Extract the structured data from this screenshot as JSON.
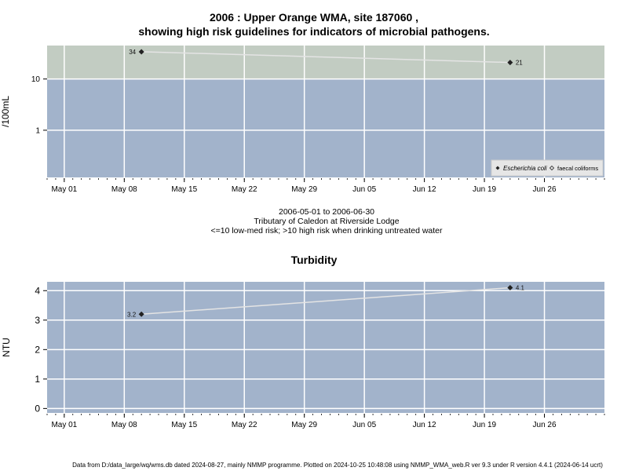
{
  "header": {
    "title_line1": "2006 : Upper Orange WMA, site 187060 ,",
    "title_line2": "showing high risk guidelines for indicators of microbial pathogens."
  },
  "subtitle": {
    "line1": "2006-05-01 to 2006-06-30",
    "line2": "Tributary of Caledon at Riverside Lodge",
    "line3": "<=10 low-med risk; >10 high risk when drinking untreated water"
  },
  "footer": {
    "text": "Data from D:/data_large/wq/wms.db dated 2024-08-27, mainly NMMP programme. Plotted on 2024-10-25 10:48:08 using NMMP_WMA_web.R ver 9.3 under R version 4.4.1 (2024-06-14 ucrt)"
  },
  "colors": {
    "plot_background": "#a2b3cb",
    "high_risk_band": "#c2ccc2",
    "gridline": "#ffffff",
    "series_line": "#e4e4e4",
    "point": "#222222"
  },
  "chart_data": [
    {
      "type": "line",
      "y_scale": "log",
      "title": "",
      "xlabel": "",
      "ylabel": "/100mL",
      "x_tick_labels": [
        "May 01",
        "May 08",
        "May 15",
        "May 22",
        "May 29",
        "Jun 05",
        "Jun 12",
        "Jun 19",
        "Jun 26"
      ],
      "y_ticks": [
        1,
        10
      ],
      "ylim": [
        0.12,
        45
      ],
      "xlim": [
        "2006-04-29",
        "2006-07-03"
      ],
      "high_risk_threshold": 10,
      "grid": true,
      "legend_position": "bottom-right",
      "legend": [
        "Escherichia coli",
        "faecal coliforms"
      ],
      "series": [
        {
          "name": "Escherichia coli",
          "marker": "diamond-filled",
          "points": [
            {
              "x": "2006-05-10",
              "y": 34,
              "label": "34"
            },
            {
              "x": "2006-06-22",
              "y": 21,
              "label": "21"
            }
          ]
        }
      ]
    },
    {
      "type": "line",
      "title": "Turbidity",
      "xlabel": "",
      "ylabel": "NTU",
      "x_tick_labels": [
        "May 01",
        "May 08",
        "May 15",
        "May 22",
        "May 29",
        "Jun 05",
        "Jun 12",
        "Jun 19",
        "Jun 26"
      ],
      "y_ticks": [
        0,
        1,
        2,
        3,
        4
      ],
      "ylim": [
        -0.15,
        4.3
      ],
      "xlim": [
        "2006-04-29",
        "2006-07-03"
      ],
      "grid": true,
      "series": [
        {
          "points": [
            {
              "x": "2006-05-10",
              "y": 3.2,
              "label": "3.2"
            },
            {
              "x": "2006-06-22",
              "y": 4.1,
              "label": "4.1"
            }
          ]
        }
      ]
    }
  ]
}
